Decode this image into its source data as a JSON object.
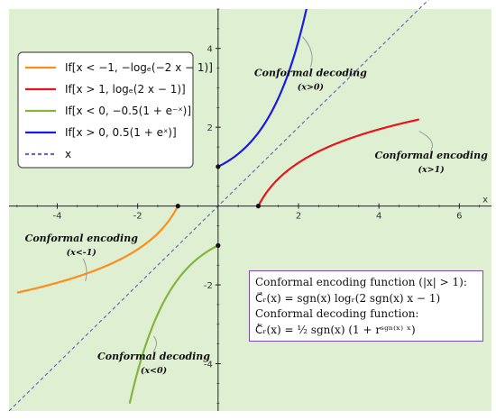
{
  "chart_data": {
    "type": "line",
    "xlabel": "x",
    "ylabel": "",
    "xlim": [
      -5.2,
      6.8
    ],
    "ylim": [
      -5.2,
      5.0
    ],
    "xticks": [
      -4,
      -2,
      2,
      4,
      6
    ],
    "xtick_labels": [
      "-4",
      "-2",
      "2",
      "4",
      "6"
    ],
    "yticks": [
      -4,
      -2,
      2,
      4
    ],
    "ytick_labels": [
      "-4",
      "-2",
      "2",
      "4"
    ],
    "grid": false,
    "background": "#dff0d2",
    "legend_position": "top-left",
    "series": [
      {
        "name": "If[x < -1, -log_e(-2x - 1)]",
        "color": "#ff8c1a",
        "expr": "-ln(-2x-1)",
        "domain": [
          -5,
          -1
        ]
      },
      {
        "name": "If[x > 1, log_e(2x - 1)]",
        "color": "#e8141a",
        "expr": "ln(2x-1)",
        "domain": [
          1,
          5
        ]
      },
      {
        "name": "If[x < 0, -0.5(1 + e^(-x))]",
        "color": "#86b33c",
        "expr": "-0.5(1+e^(-x))",
        "domain": [
          -2.2,
          0
        ]
      },
      {
        "name": "If[x > 0, 0.5(1 + e^x)]",
        "color": "#1a1ae6",
        "expr": "0.5(1+e^x)",
        "domain": [
          0,
          2.2
        ]
      },
      {
        "name": "x",
        "color": "#6a6ab8",
        "expr": "x",
        "domain": [
          -5.2,
          6.8
        ],
        "dashed": true
      }
    ],
    "points": [
      {
        "x": -1,
        "y": 0
      },
      {
        "x": 1,
        "y": 0
      },
      {
        "x": 0,
        "y": 1
      },
      {
        "x": 0,
        "y": -1
      }
    ],
    "annotations": [
      {
        "text": "Conformal decoding",
        "sub": "(x>0)",
        "x": 2.3,
        "y": 3.3,
        "target_x": 2.1,
        "target_y": 4.3
      },
      {
        "text": "Conformal encoding",
        "sub": "(x>1)",
        "x": 5.3,
        "y": 1.2,
        "target_x": 5.0,
        "target_y": 1.9
      },
      {
        "text": "Conformal encoding",
        "sub": "(x<-1)",
        "x": -3.4,
        "y": -0.9,
        "target_x": -3.3,
        "target_y": -1.9
      },
      {
        "text": "Conformal decoding",
        "sub": "(x<0)",
        "x": -1.6,
        "y": -3.9,
        "target_x": -1.6,
        "target_y": -3.3
      }
    ]
  },
  "legend": {
    "items": [
      "If[x < −1, −logₑ(−2 x − 1)]",
      "If[x > 1, logₑ(2 x − 1)]",
      "If[x < 0, −0.5(1 + e⁻ˣ)]",
      "If[x > 0, 0.5(1 + eˣ)]",
      "x"
    ]
  },
  "formula_box": {
    "line1": "Conformal encoding function (|x| > 1):",
    "line2": "C⃗ᵣ(x) = sgn(x) logᵣ(2 sgn(x) x − 1)",
    "line3": "Conformal decoding function:",
    "line4": "C⃖ᵣ(x) = ½ sgn(x) (1 + rˢᵍⁿ⁽ˣ⁾ ˣ)"
  }
}
